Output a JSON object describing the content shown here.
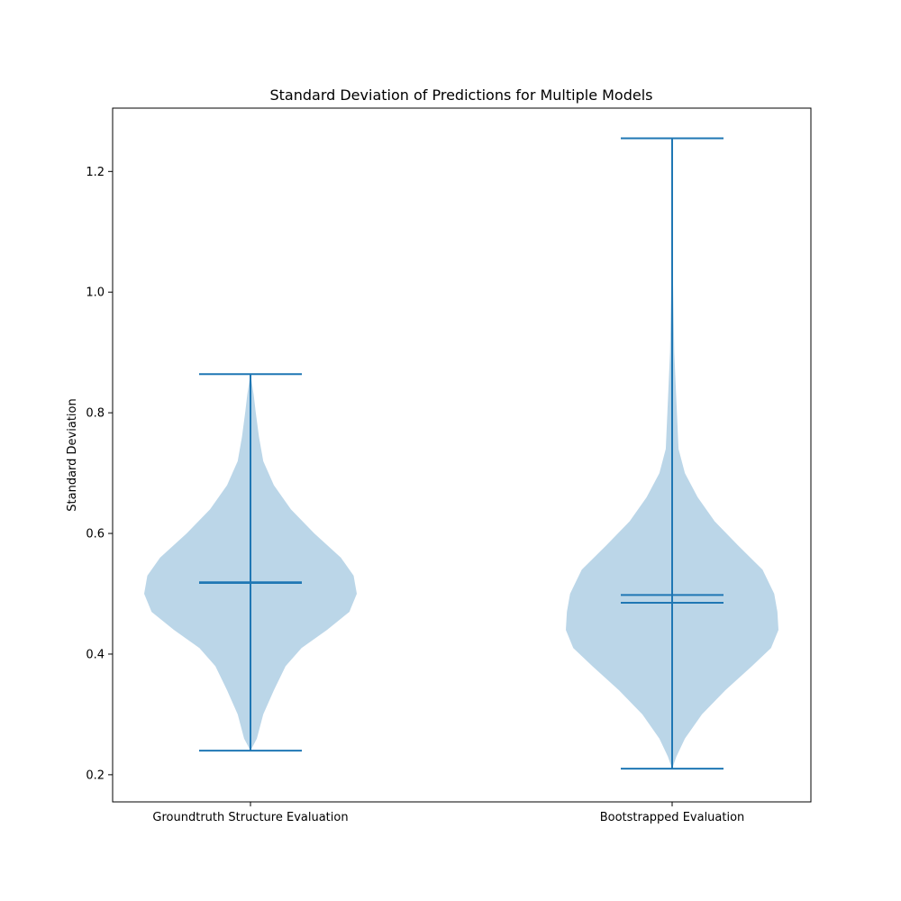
{
  "chart_data": {
    "type": "violin",
    "title": "Standard Deviation of Predictions for Multiple Models",
    "xlabel": "",
    "ylabel": "Standard Deviation",
    "ylim": [
      0.155,
      1.305
    ],
    "yticks": [
      0.2,
      0.4,
      0.6,
      0.8,
      1.0,
      1.2
    ],
    "ytick_labels": [
      "0.2",
      "0.4",
      "0.6",
      "0.8",
      "1.0",
      "1.2"
    ],
    "categories": [
      "Groundtruth Structure Evaluation",
      "Bootstrapped Evaluation"
    ],
    "grid": false,
    "colors": {
      "line": "#1f77b4",
      "fill": "#1f77b4",
      "fill_opacity": 0.3
    },
    "series": [
      {
        "min": 0.24,
        "max": 0.864,
        "mean": 0.519,
        "median": 0.518,
        "profile": [
          [
            0.24,
            0.0
          ],
          [
            0.26,
            0.06
          ],
          [
            0.3,
            0.12
          ],
          [
            0.34,
            0.22
          ],
          [
            0.38,
            0.33
          ],
          [
            0.41,
            0.48
          ],
          [
            0.44,
            0.72
          ],
          [
            0.47,
            0.93
          ],
          [
            0.5,
            1.0
          ],
          [
            0.53,
            0.97
          ],
          [
            0.56,
            0.85
          ],
          [
            0.6,
            0.6
          ],
          [
            0.64,
            0.38
          ],
          [
            0.68,
            0.22
          ],
          [
            0.72,
            0.12
          ],
          [
            0.76,
            0.08
          ],
          [
            0.8,
            0.05
          ],
          [
            0.83,
            0.03
          ],
          [
            0.864,
            0.0
          ]
        ]
      },
      {
        "min": 0.21,
        "max": 1.255,
        "mean": 0.498,
        "median": 0.485,
        "profile": [
          [
            0.21,
            0.0
          ],
          [
            0.23,
            0.04
          ],
          [
            0.26,
            0.12
          ],
          [
            0.3,
            0.28
          ],
          [
            0.34,
            0.5
          ],
          [
            0.38,
            0.75
          ],
          [
            0.41,
            0.93
          ],
          [
            0.44,
            1.0
          ],
          [
            0.47,
            0.99
          ],
          [
            0.5,
            0.96
          ],
          [
            0.54,
            0.85
          ],
          [
            0.58,
            0.62
          ],
          [
            0.62,
            0.4
          ],
          [
            0.66,
            0.24
          ],
          [
            0.7,
            0.12
          ],
          [
            0.74,
            0.06
          ],
          [
            0.78,
            0.05
          ],
          [
            0.82,
            0.04
          ],
          [
            0.86,
            0.03
          ],
          [
            0.9,
            0.02
          ],
          [
            0.95,
            0.015
          ],
          [
            1.0,
            0.01
          ],
          [
            1.05,
            0.004
          ],
          [
            1.1,
            0.001
          ],
          [
            1.255,
            0.0
          ]
        ]
      }
    ]
  }
}
